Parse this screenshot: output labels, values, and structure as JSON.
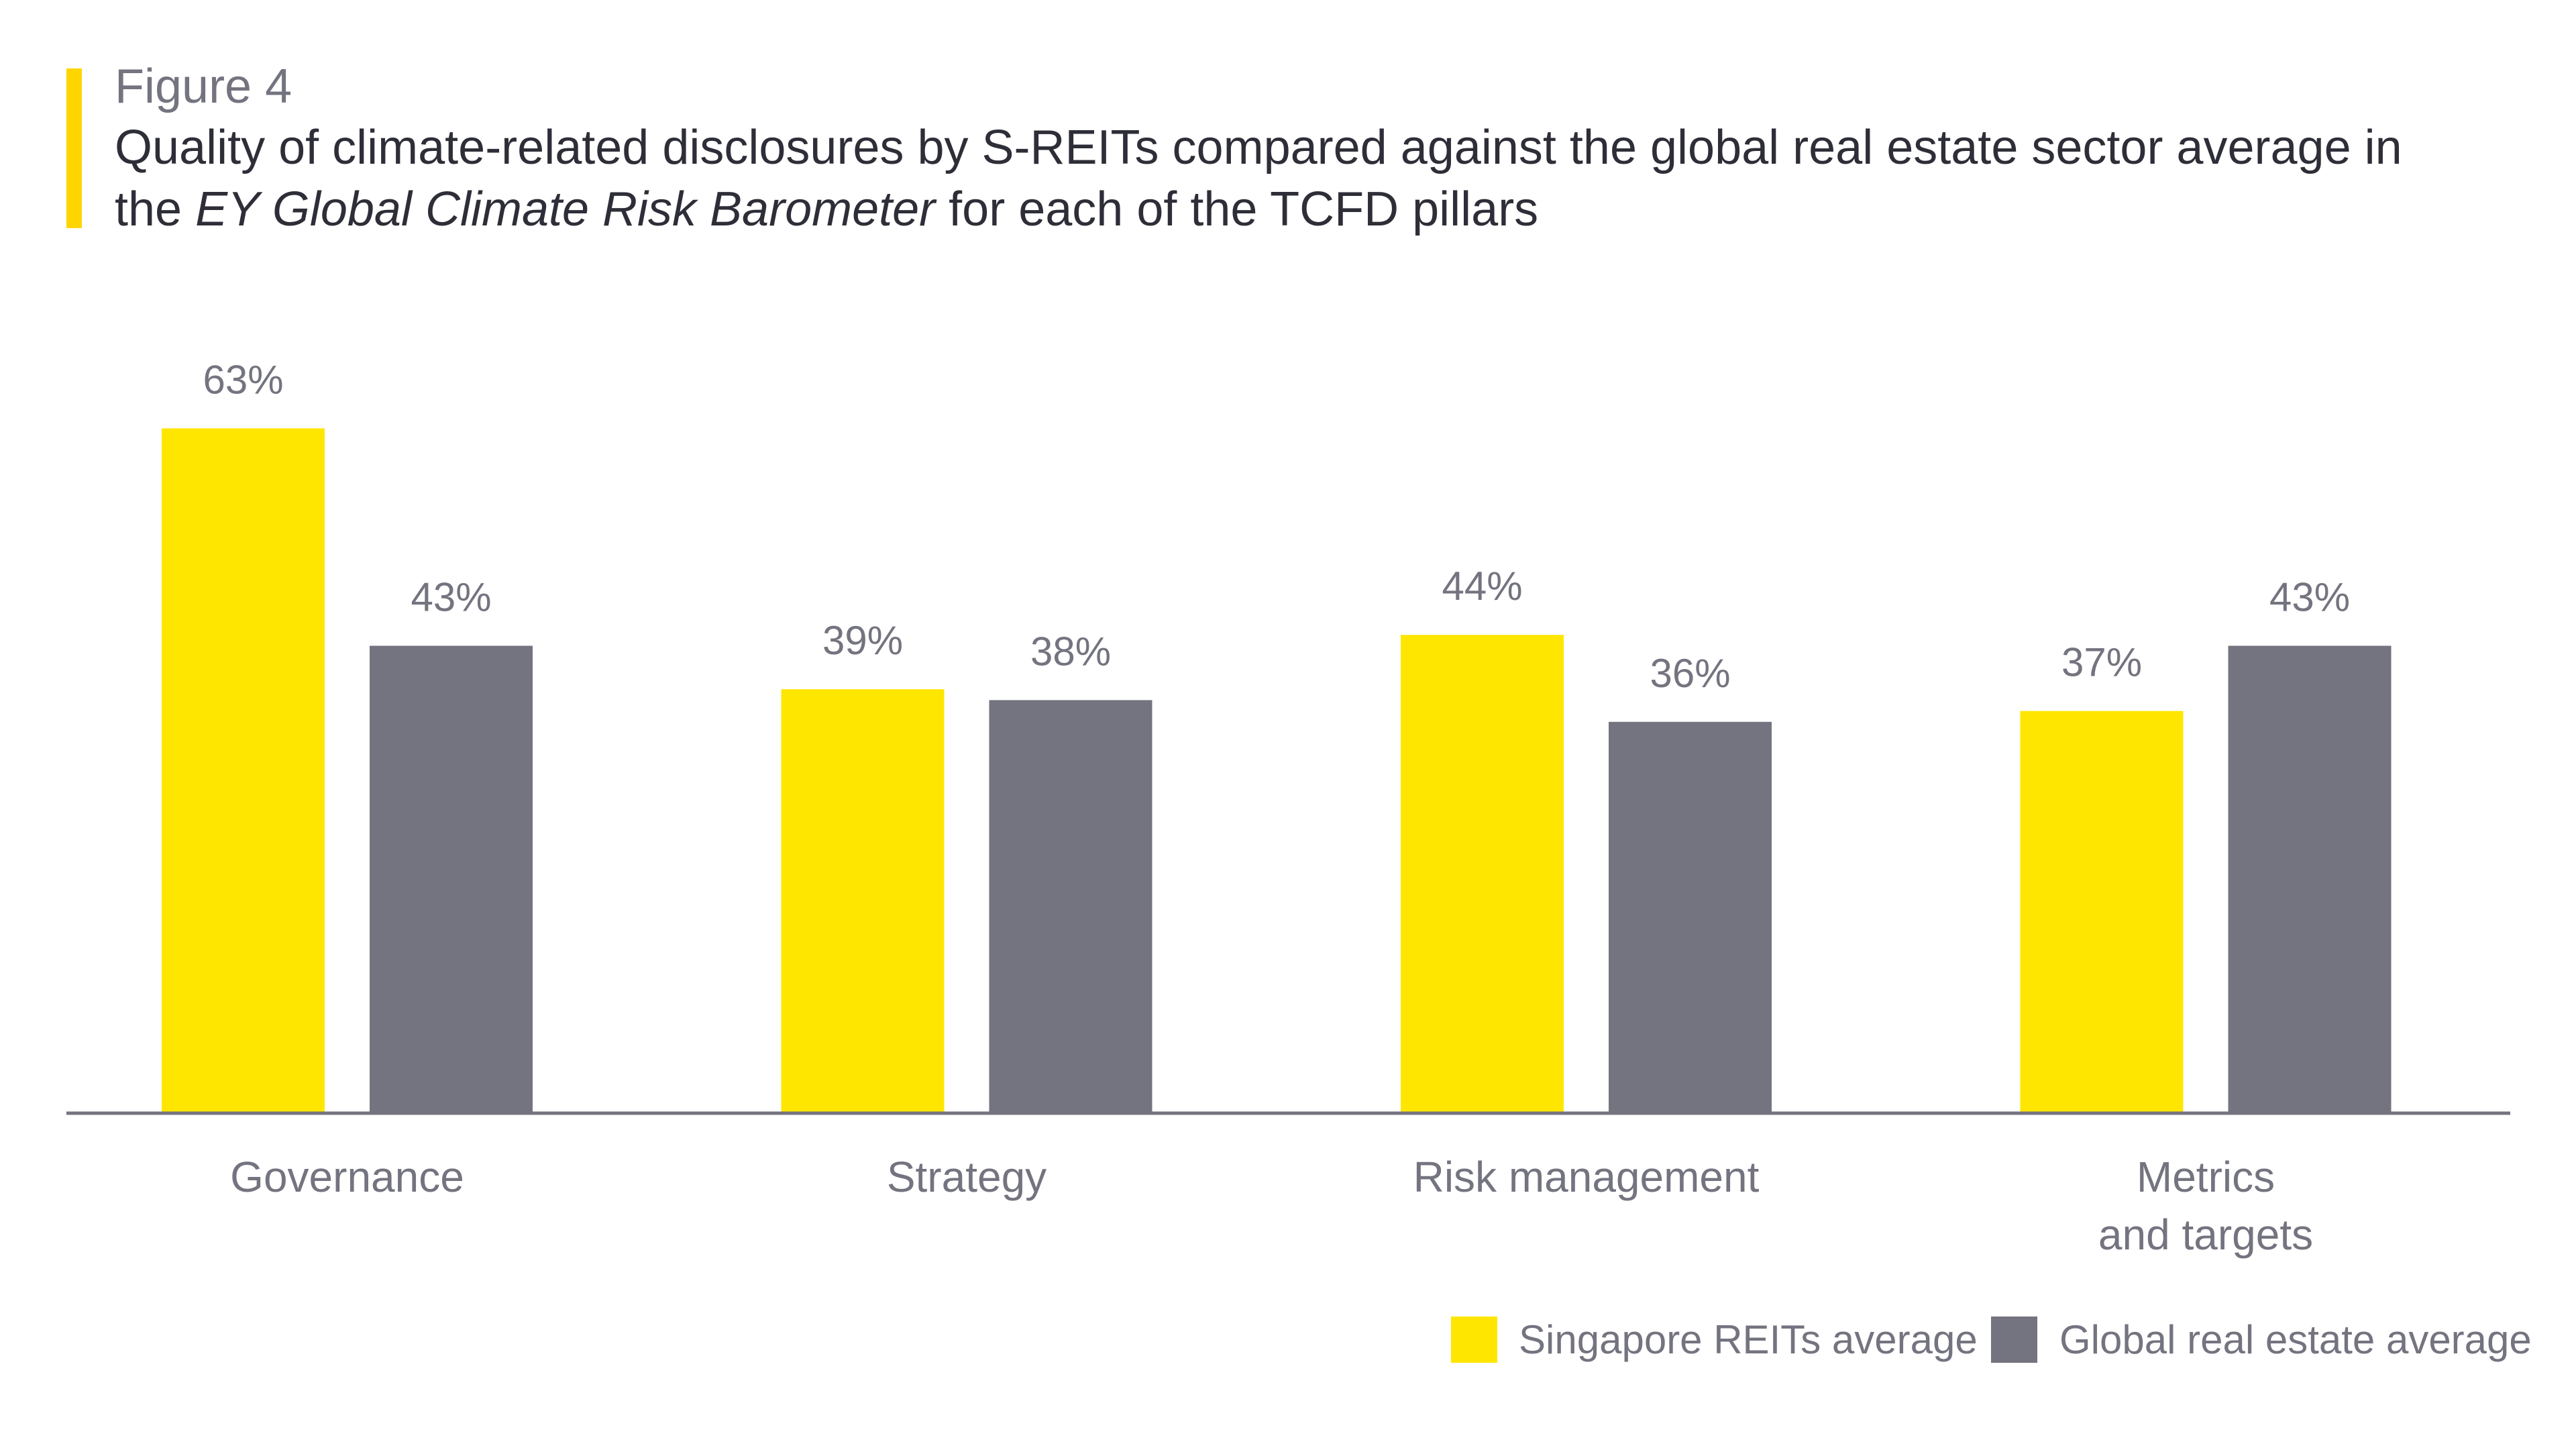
{
  "figure_label": "Figure 4",
  "title": {
    "part1": "Quality of climate-related disclosures by S-REITs compared against the global real estate sector average in the ",
    "italic": "EY Global Climate Risk Barometer",
    "part2": " for each of the TCFD pillars"
  },
  "colors": {
    "accent": "#FFD500",
    "singapore": "#FFE600",
    "global": "#747480",
    "text": "#747480",
    "title": "#2E2E38"
  },
  "chart_data": {
    "type": "bar",
    "categories": [
      [
        "Governance"
      ],
      [
        "Strategy"
      ],
      [
        "Risk management"
      ],
      [
        "Metrics",
        "and targets"
      ]
    ],
    "series": [
      {
        "name": "Singapore REITs average",
        "values": [
          63,
          39,
          44,
          37
        ],
        "labels": [
          "63%",
          "39%",
          "44%",
          "37%"
        ]
      },
      {
        "name": "Global real estate average",
        "values": [
          43,
          38,
          36,
          43
        ],
        "labels": [
          "43%",
          "38%",
          "36%",
          "43%"
        ]
      }
    ],
    "unit": "%",
    "ylim": [
      0,
      100
    ],
    "grid": false,
    "legend": "bottom-right"
  }
}
